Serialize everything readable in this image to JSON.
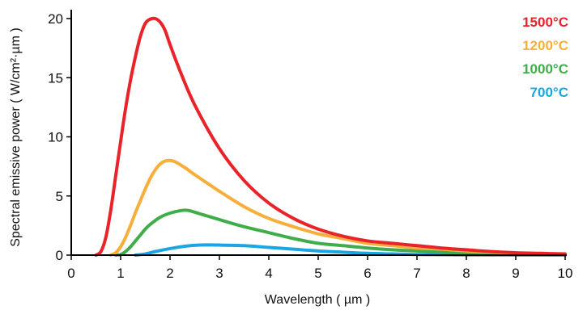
{
  "chart_data": {
    "type": "line",
    "title": "",
    "xlabel": "Wavelength ( µm )",
    "ylabel": "Spectral emissive power ( W/cm²·µm )",
    "xlim": [
      0,
      10
    ],
    "ylim": [
      0,
      21
    ],
    "xticks": [
      0,
      1,
      2,
      3,
      4,
      5,
      6,
      7,
      8,
      9,
      10
    ],
    "yticks": [
      0,
      5,
      10,
      15,
      20
    ],
    "grid": false,
    "legend_position": "top-right",
    "series": [
      {
        "name": "1500°C",
        "color": "#e8232a",
        "points": [
          [
            0.5,
            0
          ],
          [
            0.6,
            0.3
          ],
          [
            0.7,
            1.5
          ],
          [
            0.8,
            3.8
          ],
          [
            0.9,
            6.7
          ],
          [
            1.0,
            9.6
          ],
          [
            1.1,
            12.4
          ],
          [
            1.2,
            14.8
          ],
          [
            1.3,
            16.8
          ],
          [
            1.4,
            18.5
          ],
          [
            1.5,
            19.6
          ],
          [
            1.6,
            19.95
          ],
          [
            1.7,
            20.0
          ],
          [
            1.8,
            19.7
          ],
          [
            1.9,
            19.0
          ],
          [
            2.0,
            17.8
          ],
          [
            2.2,
            15.6
          ],
          [
            2.5,
            12.7
          ],
          [
            3.0,
            9.0
          ],
          [
            3.5,
            6.3
          ],
          [
            4.0,
            4.4
          ],
          [
            4.5,
            3.1
          ],
          [
            5.0,
            2.2
          ],
          [
            5.5,
            1.6
          ],
          [
            6.0,
            1.2
          ],
          [
            6.5,
            1.0
          ],
          [
            7.0,
            0.8
          ],
          [
            7.5,
            0.6
          ],
          [
            8.0,
            0.45
          ],
          [
            8.5,
            0.3
          ],
          [
            9.0,
            0.2
          ],
          [
            9.5,
            0.15
          ],
          [
            10.0,
            0.1
          ]
        ]
      },
      {
        "name": "1200°C",
        "color": "#f7ae3b",
        "points": [
          [
            0.8,
            0
          ],
          [
            0.9,
            0.2
          ],
          [
            1.0,
            0.7
          ],
          [
            1.1,
            1.5
          ],
          [
            1.2,
            2.5
          ],
          [
            1.3,
            3.6
          ],
          [
            1.4,
            4.6
          ],
          [
            1.5,
            5.6
          ],
          [
            1.6,
            6.5
          ],
          [
            1.7,
            7.2
          ],
          [
            1.8,
            7.7
          ],
          [
            1.9,
            7.95
          ],
          [
            2.0,
            8.0
          ],
          [
            2.1,
            7.9
          ],
          [
            2.3,
            7.4
          ],
          [
            2.5,
            6.8
          ],
          [
            3.0,
            5.4
          ],
          [
            3.5,
            4.1
          ],
          [
            4.0,
            3.1
          ],
          [
            4.5,
            2.4
          ],
          [
            5.0,
            1.8
          ],
          [
            5.5,
            1.4
          ],
          [
            6.0,
            1.0
          ],
          [
            6.5,
            0.8
          ],
          [
            7.0,
            0.6
          ],
          [
            7.5,
            0.5
          ],
          [
            8.0,
            0.35
          ],
          [
            8.5,
            0.25
          ],
          [
            9.0,
            0.15
          ],
          [
            9.5,
            0.1
          ],
          [
            10.0,
            0.05
          ]
        ]
      },
      {
        "name": "1000°C",
        "color": "#41ad4a",
        "points": [
          [
            0.9,
            0
          ],
          [
            1.0,
            0.05
          ],
          [
            1.1,
            0.3
          ],
          [
            1.2,
            0.7
          ],
          [
            1.3,
            1.2
          ],
          [
            1.4,
            1.7
          ],
          [
            1.5,
            2.2
          ],
          [
            1.6,
            2.6
          ],
          [
            1.8,
            3.2
          ],
          [
            2.0,
            3.55
          ],
          [
            2.2,
            3.75
          ],
          [
            2.3,
            3.8
          ],
          [
            2.4,
            3.75
          ],
          [
            2.6,
            3.5
          ],
          [
            3.0,
            3.0
          ],
          [
            3.5,
            2.4
          ],
          [
            4.0,
            1.9
          ],
          [
            4.5,
            1.4
          ],
          [
            5.0,
            1.0
          ],
          [
            5.5,
            0.8
          ],
          [
            6.0,
            0.6
          ],
          [
            6.5,
            0.45
          ],
          [
            7.0,
            0.35
          ],
          [
            7.5,
            0.25
          ],
          [
            8.0,
            0.2
          ],
          [
            8.5,
            0.15
          ],
          [
            9.0,
            0.1
          ],
          [
            10.0,
            0.05
          ]
        ]
      },
      {
        "name": "700°C",
        "color": "#1ba6e1",
        "points": [
          [
            1.3,
            0
          ],
          [
            1.5,
            0.1
          ],
          [
            1.7,
            0.3
          ],
          [
            2.0,
            0.55
          ],
          [
            2.3,
            0.75
          ],
          [
            2.6,
            0.85
          ],
          [
            3.0,
            0.85
          ],
          [
            3.5,
            0.8
          ],
          [
            4.0,
            0.65
          ],
          [
            4.5,
            0.5
          ],
          [
            5.0,
            0.35
          ],
          [
            5.5,
            0.25
          ],
          [
            6.0,
            0.15
          ],
          [
            6.5,
            0.1
          ],
          [
            7.0,
            0.05
          ],
          [
            8.0,
            0.02
          ],
          [
            10.0,
            0
          ]
        ]
      }
    ]
  }
}
